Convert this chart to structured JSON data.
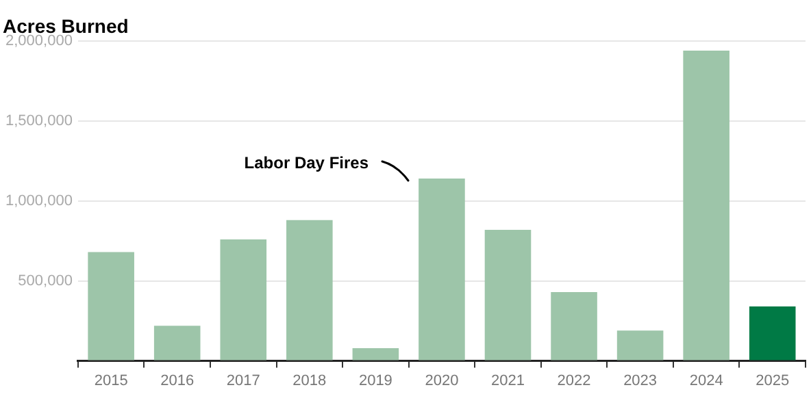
{
  "chart_data": {
    "type": "bar",
    "title": "Acres Burned",
    "categories": [
      "2015",
      "2016",
      "2017",
      "2018",
      "2019",
      "2020",
      "2021",
      "2022",
      "2023",
      "2024",
      "2025"
    ],
    "values": [
      680000,
      220000,
      760000,
      880000,
      80000,
      1140000,
      820000,
      430000,
      190000,
      1940000,
      340000
    ],
    "colors": [
      "#9dc5a9",
      "#9dc5a9",
      "#9dc5a9",
      "#9dc5a9",
      "#9dc5a9",
      "#9dc5a9",
      "#9dc5a9",
      "#9dc5a9",
      "#9dc5a9",
      "#9dc5a9",
      "#007a45"
    ],
    "ylim": [
      0,
      2000000
    ],
    "yticks": [
      {
        "value": 0,
        "label": null
      },
      {
        "value": 500000,
        "label": "500,000"
      },
      {
        "value": 1000000,
        "label": "1,000,000"
      },
      {
        "value": 1500000,
        "label": "1,500,000"
      },
      {
        "value": 2000000,
        "label": "2,000,000"
      }
    ],
    "grid": "y",
    "legend": false,
    "annotations": [
      "Labor Day Fires"
    ]
  }
}
